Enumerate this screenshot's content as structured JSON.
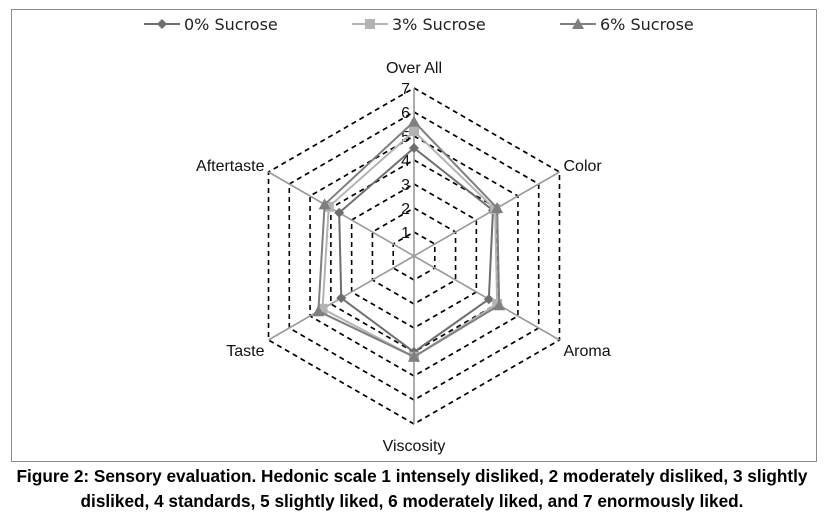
{
  "chart_data": {
    "type": "radar",
    "axes": [
      "Over All",
      "Color",
      "Aroma",
      "Viscosity",
      "Taste",
      "Aftertaste"
    ],
    "rlim": [
      0,
      7
    ],
    "ticks": [
      "1",
      "2",
      "3",
      "4",
      "5",
      "6",
      "7"
    ],
    "grid": "dashed hexagons",
    "legend_position": "top",
    "series": [
      {
        "name": "0% Sucrose",
        "values": [
          4.5,
          3.8,
          3.6,
          4.0,
          3.5,
          3.6
        ],
        "color": "#6e6e6e",
        "marker": "diamond"
      },
      {
        "name": "3% Sucrose",
        "values": [
          5.2,
          3.9,
          4.0,
          4.2,
          4.4,
          4.1
        ],
        "color": "#b3b3b3",
        "marker": "square"
      },
      {
        "name": "6% Sucrose",
        "values": [
          5.6,
          4.0,
          4.1,
          4.2,
          4.6,
          4.3
        ],
        "color": "#7f7f7f",
        "marker": "triangle"
      }
    ]
  },
  "caption": "Figure 2: Sensory evaluation. Hedonic scale 1 intensely disliked, 2 moderately disliked, 3 slightly disliked, 4 standards, 5 slightly liked, 6 moderately liked, and 7 enormously liked."
}
